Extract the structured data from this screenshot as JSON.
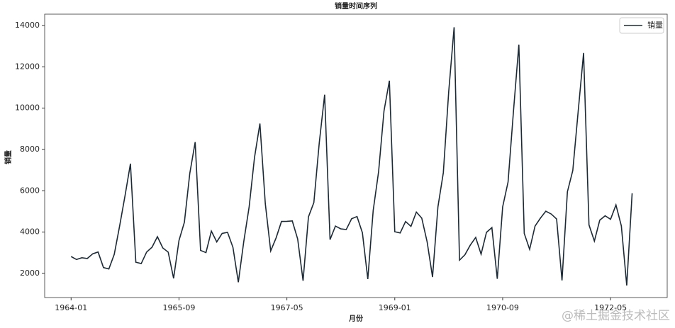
{
  "chart_data": {
    "type": "line",
    "title": "销量时间序列",
    "xlabel": "月份",
    "ylabel": "销量",
    "x": [
      "1964-01",
      "1964-02",
      "1964-03",
      "1964-04",
      "1964-05",
      "1964-06",
      "1964-07",
      "1964-08",
      "1964-09",
      "1964-10",
      "1964-11",
      "1964-12",
      "1965-01",
      "1965-02",
      "1965-03",
      "1965-04",
      "1965-05",
      "1965-06",
      "1965-07",
      "1965-08",
      "1965-09",
      "1965-10",
      "1965-11",
      "1965-12",
      "1966-01",
      "1966-02",
      "1966-03",
      "1966-04",
      "1966-05",
      "1966-06",
      "1966-07",
      "1966-08",
      "1966-09",
      "1966-10",
      "1966-11",
      "1966-12",
      "1967-01",
      "1967-02",
      "1967-03",
      "1967-04",
      "1967-05",
      "1967-06",
      "1967-07",
      "1967-08",
      "1967-09",
      "1967-10",
      "1967-11",
      "1967-12",
      "1968-01",
      "1968-02",
      "1968-03",
      "1968-04",
      "1968-05",
      "1968-06",
      "1968-07",
      "1968-08",
      "1968-09",
      "1968-10",
      "1968-11",
      "1968-12",
      "1969-01",
      "1969-02",
      "1969-03",
      "1969-04",
      "1969-05",
      "1969-06",
      "1969-07",
      "1969-08",
      "1969-09",
      "1969-10",
      "1969-11",
      "1969-12",
      "1970-01",
      "1970-02",
      "1970-03",
      "1970-04",
      "1970-05",
      "1970-06",
      "1970-07",
      "1970-08",
      "1970-09",
      "1970-10",
      "1970-11",
      "1970-12",
      "1971-01",
      "1971-02",
      "1971-03",
      "1971-04",
      "1971-05",
      "1971-06",
      "1971-07",
      "1971-08",
      "1971-09",
      "1971-10",
      "1971-11",
      "1971-12",
      "1972-01",
      "1972-02",
      "1972-03",
      "1972-04",
      "1972-05",
      "1972-06",
      "1972-07",
      "1972-08",
      "1972-09"
    ],
    "series": [
      {
        "name": "销量",
        "color": "#1b2a36",
        "values": [
          2815,
          2672,
          2755,
          2721,
          2946,
          3036,
          2282,
          2212,
          2922,
          4301,
          5764,
          7312,
          2541,
          2475,
          3031,
          3266,
          3776,
          3230,
          3028,
          1759,
          3595,
          4474,
          6838,
          8357,
          3113,
          3006,
          4047,
          3523,
          3937,
          3986,
          3260,
          1573,
          3528,
          5211,
          7614,
          9254,
          5375,
          3088,
          3718,
          4514,
          4520,
          4539,
          3663,
          1643,
          4739,
          5428,
          8314,
          10651,
          3633,
          4292,
          4154,
          4121,
          4647,
          4753,
          3965,
          1723,
          5048,
          6922,
          9858,
          11331,
          4016,
          3957,
          4510,
          4276,
          4968,
          4677,
          3523,
          1821,
          5222,
          6872,
          10803,
          13916,
          2639,
          2899,
          3370,
          3740,
          2927,
          3986,
          4217,
          1738,
          5221,
          6424,
          9842,
          13076,
          3934,
          3162,
          4286,
          4676,
          5010,
          4874,
          4633,
          1659,
          5951,
          6981,
          9851,
          12670,
          4348,
          3564,
          4577,
          4788,
          4618,
          5312,
          4298,
          1413,
          5877
        ]
      }
    ],
    "xticks": [
      "1964-01",
      "1965-09",
      "1967-05",
      "1969-01",
      "1970-09",
      "1972-05"
    ],
    "ylim": [
      830,
      14550
    ],
    "yticks": [
      2000,
      4000,
      6000,
      8000,
      10000,
      12000,
      14000
    ],
    "legend": "upper right",
    "grid": false,
    "watermark": "@稀土掘金技术社区"
  }
}
